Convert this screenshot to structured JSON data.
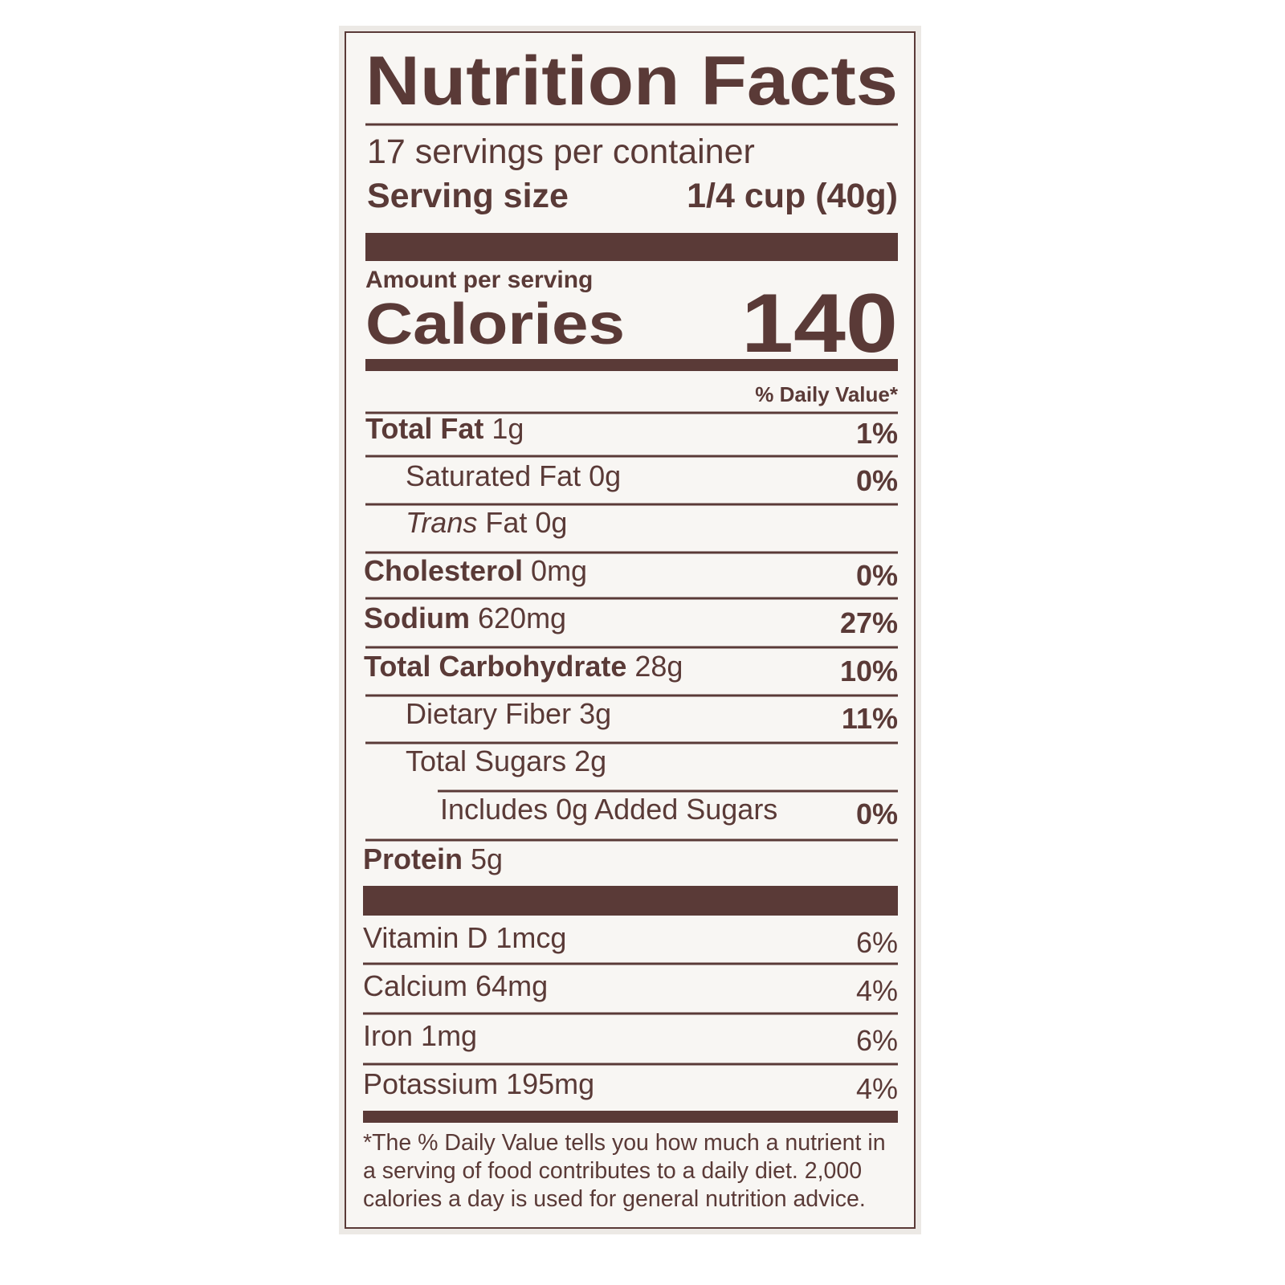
{
  "title": "Nutrition Facts",
  "servings": "17 servings per container",
  "serving_size": {
    "label": "Serving size",
    "value": "1/4 cup (40g)"
  },
  "amount_per_serving": "Amount per serving",
  "calories": {
    "label": "Calories",
    "value": "140"
  },
  "daily_value_header": "% Daily Value*",
  "nutrients": [
    {
      "name": "Total Fat",
      "amount": "1g",
      "dv": "1%"
    },
    {
      "name": "Saturated Fat",
      "amount": "0g",
      "dv": "0%"
    },
    {
      "name": "Trans",
      "amount": "Fat 0g"
    },
    {
      "name": "Cholesterol",
      "amount": "0mg",
      "dv": "0%"
    },
    {
      "name": "Sodium",
      "amount": "620mg",
      "dv": "27%"
    },
    {
      "name": "Total Carbohydrate",
      "amount": "28g",
      "dv": "10%"
    },
    {
      "name": "Dietary Fiber",
      "amount": "3g",
      "dv": "11%"
    },
    {
      "name": "Total Sugars",
      "amount": "2g"
    },
    {
      "name": "Includes 0g Added Sugars",
      "dv": "0%"
    },
    {
      "name": "Protein",
      "amount": "5g"
    }
  ],
  "vitamins_minerals": [
    {
      "name": "Vitamin D",
      "amount": "1mcg",
      "dv": "6%"
    },
    {
      "name": "Calcium",
      "amount": "64mg",
      "dv": "4%"
    },
    {
      "name": "Iron",
      "amount": "1mg",
      "dv": "6%"
    },
    {
      "name": "Potassium",
      "amount": "195mg",
      "dv": "4%"
    }
  ],
  "footnote": [
    "*The % Daily Value tells you how much a nutrient in",
    "a serving of food contributes to a daily diet. 2,000",
    "calories a day is used for general nutrition advice."
  ]
}
